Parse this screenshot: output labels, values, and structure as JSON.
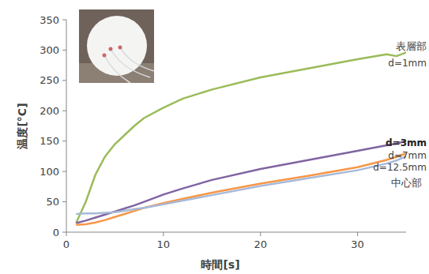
{
  "chart_data": {
    "type": "line",
    "x_label": "時間[s]",
    "y_label": "温度[°C]",
    "x": [
      1,
      2,
      3,
      4,
      5,
      6,
      7,
      8,
      10,
      12,
      15,
      20,
      25,
      30,
      33,
      34,
      35
    ],
    "series": [
      {
        "name": "d=1mm",
        "color": "#9bbb59",
        "values": [
          15,
          50,
          95,
          125,
          145,
          160,
          175,
          188,
          205,
          220,
          235,
          255,
          270,
          285,
          293,
          290,
          296
        ]
      },
      {
        "name": "d=3mm",
        "color": "#8064a2",
        "values": [
          15,
          19,
          24,
          29,
          34,
          39,
          44,
          50,
          62,
          72,
          86,
          104,
          119,
          134,
          143,
          146,
          150
        ]
      },
      {
        "name": "d=7mm",
        "color": "#f79646",
        "values": [
          12,
          13,
          16,
          20,
          25,
          30,
          35,
          40,
          48,
          55,
          65,
          80,
          93,
          107,
          119,
          124,
          130
        ]
      },
      {
        "name": "d=12.5mm",
        "color": "#a7b9d9",
        "values": [
          30,
          31,
          31,
          32,
          33,
          35,
          38,
          40,
          46,
          52,
          61,
          76,
          89,
          102,
          113,
          118,
          125
        ]
      }
    ],
    "xlim": [
      0,
      35
    ],
    "xticks": [
      0,
      10,
      20,
      30
    ],
    "ylim": [
      0,
      350
    ],
    "yticks": [
      0,
      50,
      100,
      150,
      200,
      250,
      300,
      350
    ],
    "grid": false,
    "annotations": [
      "表層部",
      "中心部"
    ]
  }
}
